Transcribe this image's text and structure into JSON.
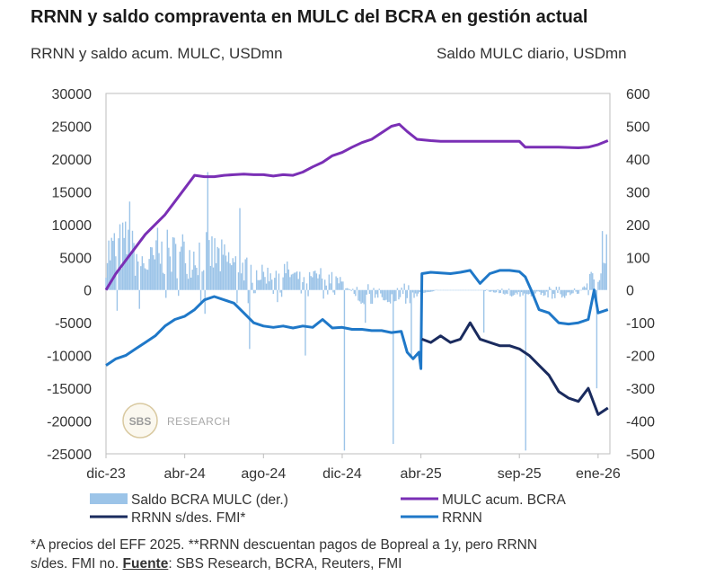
{
  "header": {
    "title": "RRNN y saldo compraventa en MULC del BCRA en gestión actual",
    "subtitle_left": "RRNN y saldo acum. MULC, USDmn",
    "subtitle_right": "Saldo MULC diario, USDmn"
  },
  "watermark": {
    "badge": "SBS",
    "text": "RESEARCH"
  },
  "footnote": {
    "line1": "*A precios del EFF 2025. **RRNN descuentan pagos de Bopreal a 1y, pero RRNN",
    "line2_prefix": "s/des. FMI no. ",
    "source_label": "Fuente",
    "source_text": ": SBS Research, BCRA, Reuters, FMI"
  },
  "chart_data": {
    "type": "line",
    "x_ticks": [
      "dic-23",
      "abr-24",
      "ago-24",
      "dic-24",
      "abr-25",
      "sep-25",
      "ene-26"
    ],
    "x_tick_t": [
      0,
      4,
      8,
      12,
      16,
      21,
      25
    ],
    "x_range": [
      0,
      25.6
    ],
    "y_left": {
      "ticks": [
        30000,
        25000,
        20000,
        15000,
        10000,
        5000,
        0,
        -5000,
        -10000,
        -15000,
        -20000,
        -25000
      ],
      "min": -25000,
      "max": 30000
    },
    "y_right": {
      "ticks": [
        600,
        500,
        400,
        300,
        200,
        100,
        0,
        -100,
        -200,
        -300,
        -400,
        -500
      ],
      "min": -500,
      "max": 600
    },
    "legend": [
      {
        "label": "Saldo BCRA MULC (der.)",
        "color": "#9cc4e8",
        "kind": "bar"
      },
      {
        "label": "MULC acum. BCRA",
        "color": "#7a2fb5",
        "kind": "line"
      },
      {
        "label": "RRNN s/des. FMI*",
        "color": "#1a2b5e",
        "kind": "line"
      },
      {
        "label": "RRNN",
        "color": "#1f78c8",
        "kind": "line"
      }
    ],
    "series": [
      {
        "name": "MULC acum. BCRA",
        "axis": "left",
        "color": "#7a2fb5",
        "points": [
          [
            0,
            0
          ],
          [
            0.5,
            2500
          ],
          [
            1,
            4500
          ],
          [
            1.5,
            6500
          ],
          [
            2,
            8500
          ],
          [
            2.5,
            10000
          ],
          [
            3,
            11500
          ],
          [
            3.5,
            13500
          ],
          [
            4,
            15500
          ],
          [
            4.5,
            17500
          ],
          [
            5,
            17300
          ],
          [
            5.5,
            17300
          ],
          [
            6,
            17500
          ],
          [
            6.5,
            17600
          ],
          [
            7,
            17700
          ],
          [
            7.5,
            17600
          ],
          [
            8,
            17600
          ],
          [
            8.5,
            17400
          ],
          [
            9,
            17600
          ],
          [
            9.5,
            17500
          ],
          [
            10,
            18000
          ],
          [
            10.5,
            18800
          ],
          [
            11,
            19500
          ],
          [
            11.5,
            20500
          ],
          [
            12,
            21000
          ],
          [
            12.5,
            21800
          ],
          [
            13,
            22500
          ],
          [
            13.5,
            23000
          ],
          [
            14,
            24000
          ],
          [
            14.5,
            25000
          ],
          [
            14.9,
            25300
          ],
          [
            15.3,
            24200
          ],
          [
            15.8,
            23000
          ],
          [
            16.5,
            22800
          ],
          [
            17,
            22700
          ],
          [
            18,
            22700
          ],
          [
            19,
            22700
          ],
          [
            20,
            22700
          ],
          [
            21,
            22700
          ],
          [
            21.3,
            21800
          ],
          [
            22,
            21800
          ],
          [
            23,
            21800
          ],
          [
            24,
            21700
          ],
          [
            24.5,
            21800
          ],
          [
            25,
            22200
          ],
          [
            25.5,
            22800
          ]
        ]
      },
      {
        "name": "RRNN",
        "axis": "left",
        "color": "#1f78c8",
        "points": [
          [
            0,
            -11500
          ],
          [
            0.5,
            -10500
          ],
          [
            1,
            -10000
          ],
          [
            1.5,
            -9000
          ],
          [
            2,
            -8000
          ],
          [
            2.5,
            -7000
          ],
          [
            3,
            -5500
          ],
          [
            3.5,
            -4500
          ],
          [
            4,
            -4000
          ],
          [
            4.5,
            -3000
          ],
          [
            5,
            -1500
          ],
          [
            5.5,
            -1000
          ],
          [
            6,
            -1500
          ],
          [
            6.5,
            -2000
          ],
          [
            7,
            -3500
          ],
          [
            7.5,
            -5000
          ],
          [
            8,
            -5500
          ],
          [
            8.5,
            -5700
          ],
          [
            9,
            -5500
          ],
          [
            9.5,
            -5800
          ],
          [
            10,
            -5500
          ],
          [
            10.5,
            -5700
          ],
          [
            11,
            -4500
          ],
          [
            11.5,
            -5800
          ],
          [
            12,
            -5700
          ],
          [
            12.5,
            -6000
          ],
          [
            13,
            -6000
          ],
          [
            13.5,
            -6200
          ],
          [
            14,
            -6200
          ],
          [
            14.5,
            -6500
          ],
          [
            15,
            -6300
          ],
          [
            15.3,
            -9500
          ],
          [
            15.6,
            -10500
          ],
          [
            15.9,
            -9500
          ],
          [
            16,
            -12000
          ],
          [
            16.05,
            2500
          ],
          [
            16.5,
            2700
          ],
          [
            17,
            2600
          ],
          [
            17.5,
            2500
          ],
          [
            18,
            2700
          ],
          [
            18.5,
            3000
          ],
          [
            19,
            1000
          ],
          [
            19.5,
            2500
          ],
          [
            20,
            3000
          ],
          [
            20.5,
            3000
          ],
          [
            21,
            2800
          ],
          [
            21.3,
            2000
          ],
          [
            21.6,
            0
          ],
          [
            22,
            -3000
          ],
          [
            22.5,
            -3500
          ],
          [
            23,
            -5000
          ],
          [
            23.5,
            -5200
          ],
          [
            24,
            -5000
          ],
          [
            24.5,
            -4500
          ],
          [
            24.8,
            0
          ],
          [
            25,
            -3500
          ],
          [
            25.5,
            -3000
          ]
        ]
      },
      {
        "name": "RRNN s/des. FMI*",
        "axis": "left",
        "color": "#1a2b5e",
        "points": [
          [
            16.05,
            -7500
          ],
          [
            16.5,
            -8000
          ],
          [
            17,
            -7000
          ],
          [
            17.5,
            -8000
          ],
          [
            18,
            -7500
          ],
          [
            18.5,
            -5000
          ],
          [
            19,
            -7500
          ],
          [
            19.5,
            -8000
          ],
          [
            20,
            -8500
          ],
          [
            20.5,
            -8500
          ],
          [
            21,
            -9000
          ],
          [
            21.5,
            -10000
          ],
          [
            22,
            -11500
          ],
          [
            22.5,
            -13000
          ],
          [
            23,
            -15500
          ],
          [
            23.5,
            -16500
          ],
          [
            24,
            -17000
          ],
          [
            24.5,
            -15000
          ],
          [
            25,
            -19000
          ],
          [
            25.5,
            -18000
          ]
        ]
      }
    ],
    "bars": {
      "name": "Saldo BCRA MULC (der.)",
      "axis": "right",
      "color": "#9cc4e8",
      "t_start": 0,
      "t_end": 25.5,
      "count": 360,
      "profile": [
        [
          0,
          150
        ],
        [
          1,
          180
        ],
        [
          2,
          100
        ],
        [
          3,
          150
        ],
        [
          4,
          130
        ],
        [
          5,
          160
        ],
        [
          6,
          120
        ],
        [
          7,
          90
        ],
        [
          8,
          60
        ],
        [
          9,
          80
        ],
        [
          10,
          40
        ],
        [
          11,
          60
        ],
        [
          12,
          30
        ],
        [
          13,
          -40
        ],
        [
          14,
          -30
        ],
        [
          15,
          -50
        ],
        [
          16,
          -10
        ],
        [
          17,
          0
        ],
        [
          18,
          0
        ],
        [
          19,
          0
        ],
        [
          20,
          -10
        ],
        [
          21,
          -20
        ],
        [
          22,
          -15
        ],
        [
          23,
          -25
        ],
        [
          24,
          -10
        ],
        [
          25,
          80
        ],
        [
          25.5,
          90
        ]
      ],
      "spikes": [
        [
          1.2,
          270
        ],
        [
          2.6,
          190
        ],
        [
          3.9,
          170
        ],
        [
          5.2,
          360
        ],
        [
          6.8,
          250
        ],
        [
          7.3,
          -180
        ],
        [
          10.1,
          -200
        ],
        [
          12.1,
          -490
        ],
        [
          13.2,
          -100
        ],
        [
          14.6,
          -470
        ],
        [
          15.5,
          -200
        ],
        [
          19.2,
          -130
        ],
        [
          21.3,
          -490
        ],
        [
          24.9,
          -300
        ],
        [
          25.2,
          180
        ],
        [
          25.4,
          170
        ]
      ]
    }
  }
}
